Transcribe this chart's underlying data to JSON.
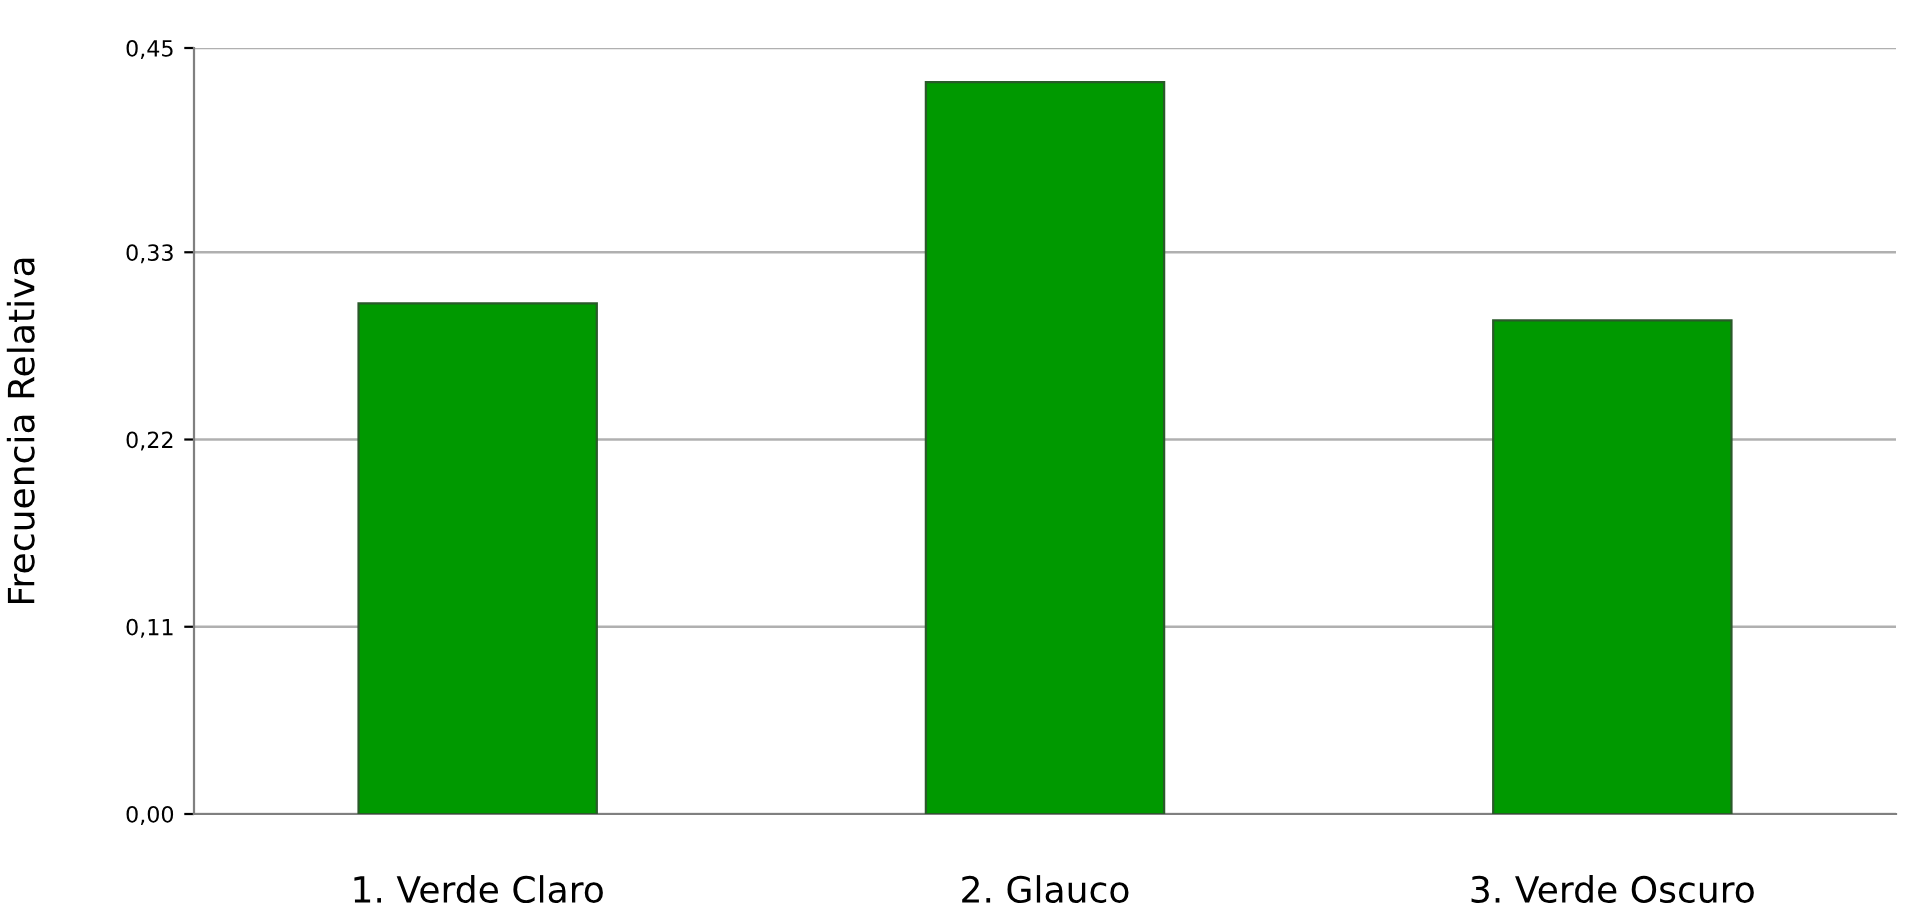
{
  "chart_data": {
    "type": "bar",
    "ylabel": "Frecuencia Relativa",
    "categories": [
      "1. Verde Claro",
      "2. Glauco",
      "3. Verde Oscuro"
    ],
    "values": [
      0.3,
      0.43,
      0.29
    ],
    "color": "#009900",
    "ylim": [
      0,
      0.45
    ],
    "yticks": [
      {
        "value": 0,
        "label": "0,00"
      },
      {
        "value": 0.11,
        "label": "0,11"
      },
      {
        "value": 0.22,
        "label": "0,22"
      },
      {
        "value": 0.33,
        "label": "0,33"
      },
      {
        "value": 0.45,
        "label": "0,45"
      }
    ],
    "grid": "y"
  }
}
